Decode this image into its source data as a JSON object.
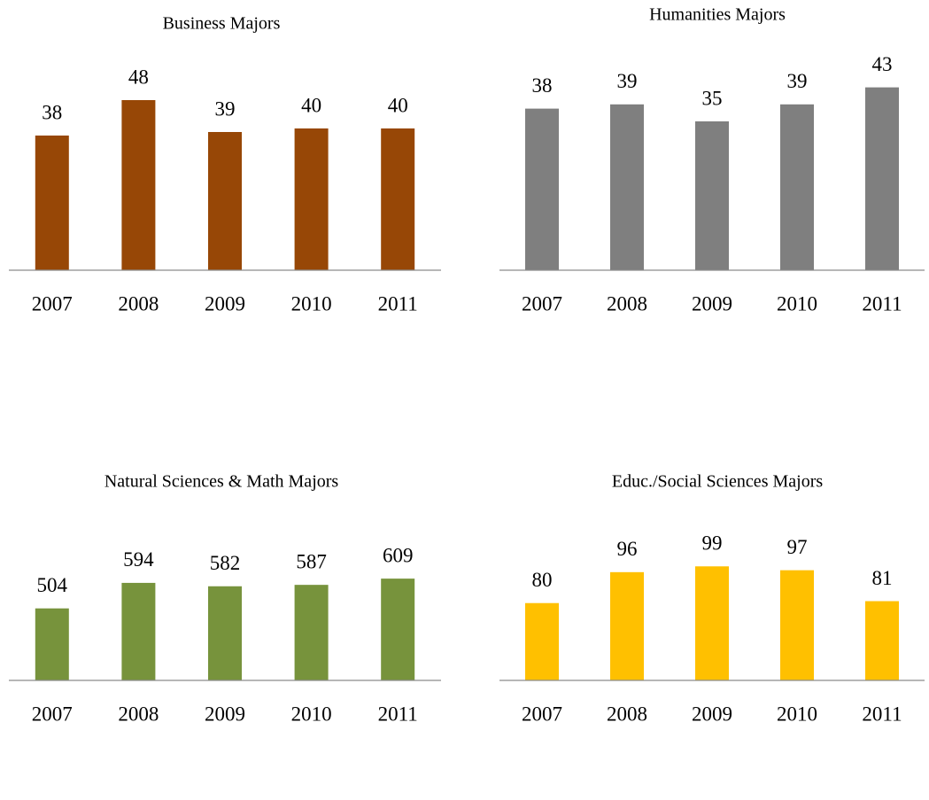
{
  "chart_data": [
    {
      "type": "bar",
      "title": "Business Majors",
      "categories": [
        "2007",
        "2008",
        "2009",
        "2010",
        "2011"
      ],
      "values": [
        38,
        48,
        39,
        40,
        40
      ],
      "color": "#974706",
      "ylim": [
        0,
        60
      ]
    },
    {
      "type": "bar",
      "title": "Humanities Majors",
      "categories": [
        "2007",
        "2008",
        "2009",
        "2010",
        "2011"
      ],
      "values": [
        38,
        39,
        35,
        39,
        43
      ],
      "color": "#7f7f7f",
      "ylim": [
        0,
        50
      ]
    },
    {
      "type": "bar",
      "title": "Natural Sciences & Math Majors",
      "categories": [
        "2007",
        "2008",
        "2009",
        "2010",
        "2011"
      ],
      "values": [
        504,
        594,
        582,
        587,
        609
      ],
      "color": "#77933c",
      "ylim": [
        250,
        1000
      ]
    },
    {
      "type": "bar",
      "title": "Educ./Social Sciences Majors",
      "categories": [
        "2007",
        "2008",
        "2009",
        "2010",
        "2011"
      ],
      "values": [
        80,
        96,
        99,
        97,
        81
      ],
      "color": "#ffc000",
      "ylim": [
        40,
        150
      ]
    }
  ]
}
